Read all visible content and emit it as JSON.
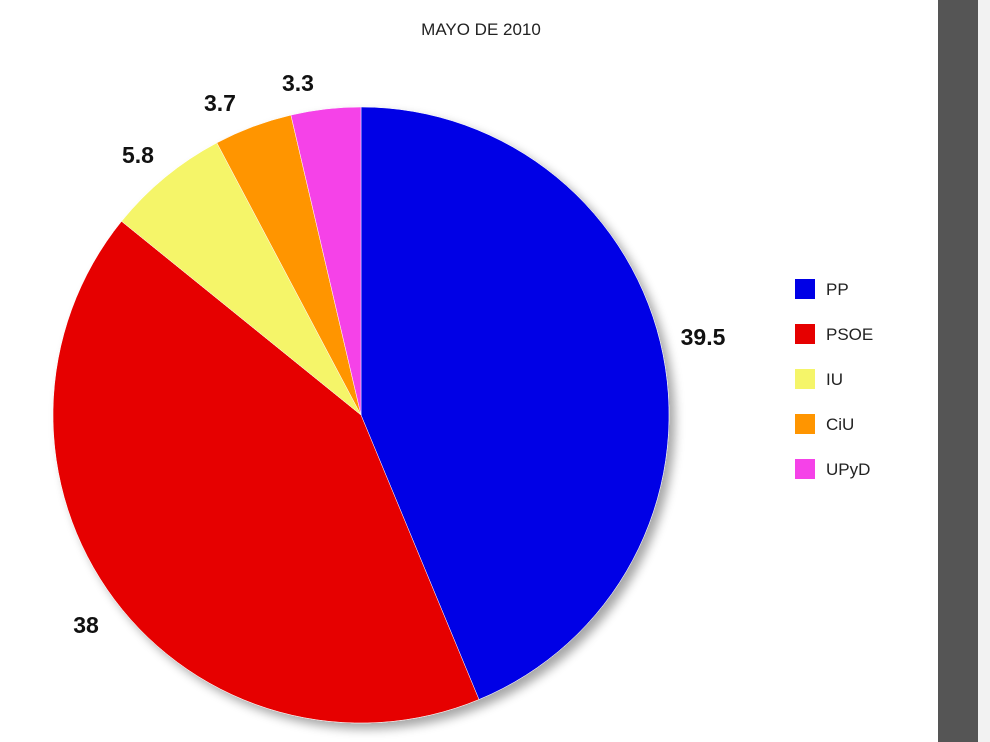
{
  "chart_data": {
    "type": "pie",
    "title": "MAYO DE 2010",
    "categories": [
      "PP",
      "PSOE",
      "IU",
      "CiU",
      "UPyD"
    ],
    "values": [
      39.5,
      38,
      5.8,
      3.7,
      3.3
    ],
    "value_labels": [
      "39.5",
      "38",
      "5.8",
      "3.7",
      "3.3"
    ],
    "colors": [
      "#0000e6",
      "#e60000",
      "#f5f569",
      "#ff9500",
      "#f542e8"
    ],
    "start_angle": "12 o'clock",
    "direction": "clockwise",
    "legend": {
      "position": "right",
      "entries": [
        "PP",
        "PSOE",
        "IU",
        "CiU",
        "UPyD"
      ]
    }
  }
}
